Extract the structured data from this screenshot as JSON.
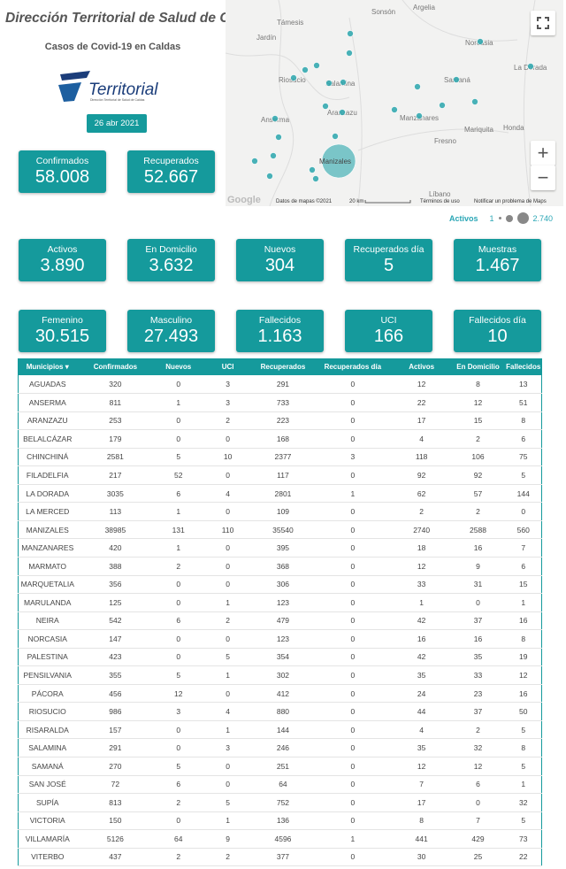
{
  "header": {
    "title": "Dirección Territorial de Salud de Caldas",
    "subtitle": "Casos de Covid-19 en Caldas",
    "logo_text": "Territorial",
    "logo_tagline": "Dirección Territorial de Salud de Caldas",
    "date": "26 abr 2021"
  },
  "colors": {
    "accent": "#159a9c",
    "legend": "#2aa6b5"
  },
  "top_cards": [
    {
      "label": "Confirmados",
      "value": "58.008"
    },
    {
      "label": "Recuperados",
      "value": "52.667"
    }
  ],
  "row1_cards": [
    {
      "label": "Activos",
      "value": "3.890"
    },
    {
      "label": "En Domicilio",
      "value": "3.632"
    },
    {
      "label": "Nuevos",
      "value": "304"
    },
    {
      "label": "Recuperados día",
      "value": "5"
    },
    {
      "label": "Muestras",
      "value": "1.467"
    }
  ],
  "row2_cards": [
    {
      "label": "Femenino",
      "value": "30.515"
    },
    {
      "label": "Masculino",
      "value": "27.493"
    },
    {
      "label": "Fallecidos",
      "value": "1.163"
    },
    {
      "label": "UCI",
      "value": "166"
    },
    {
      "label": "Fallecidos día",
      "value": "10"
    }
  ],
  "map": {
    "places": [
      "Sonsón",
      "Argelia",
      "Támesis",
      "Jardín",
      "Norcasia",
      "La Dorada",
      "Riosucio",
      "Salamina",
      "Samaná",
      "Aranzazu",
      "Manzanares",
      "Anserma",
      "Mariquita",
      "Honda",
      "Fresno",
      "Manizales",
      "Líbano"
    ],
    "attribution": "Google",
    "map_data": "Datos de mapas ©2021",
    "scale": "20 km",
    "terms": "Términos de uso",
    "report": "Notificar un problema de Maps",
    "fullscreen_icon": "fullscreen-icon",
    "zoom_in": "+",
    "zoom_out": "−"
  },
  "legend": {
    "metric": "Activos",
    "min": "1",
    "max": "2.740"
  },
  "table": {
    "columns": [
      "Municipios ▾",
      "Confirmados",
      "Nuevos",
      "UCI",
      "Recuperados",
      "Recuperados día",
      "Activos",
      "En Domicilio",
      "Fallecidos"
    ],
    "rows": [
      [
        "AGUADAS",
        "320",
        "0",
        "3",
        "291",
        "0",
        "12",
        "8",
        "13"
      ],
      [
        "ANSERMA",
        "811",
        "1",
        "3",
        "733",
        "0",
        "22",
        "12",
        "51"
      ],
      [
        "ARANZAZU",
        "253",
        "0",
        "2",
        "223",
        "0",
        "17",
        "15",
        "8"
      ],
      [
        "BELALCÁZAR",
        "179",
        "0",
        "0",
        "168",
        "0",
        "4",
        "2",
        "6"
      ],
      [
        "CHINCHINÁ",
        "2581",
        "5",
        "10",
        "2377",
        "3",
        "118",
        "106",
        "75"
      ],
      [
        "FILADELFIA",
        "217",
        "52",
        "0",
        "117",
        "0",
        "92",
        "92",
        "5"
      ],
      [
        "LA DORADA",
        "3035",
        "6",
        "4",
        "2801",
        "1",
        "62",
        "57",
        "144"
      ],
      [
        "LA MERCED",
        "113",
        "1",
        "0",
        "109",
        "0",
        "2",
        "2",
        "0"
      ],
      [
        "MANIZALES",
        "38985",
        "131",
        "110",
        "35540",
        "0",
        "2740",
        "2588",
        "560"
      ],
      [
        "MANZANARES",
        "420",
        "1",
        "0",
        "395",
        "0",
        "18",
        "16",
        "7"
      ],
      [
        "MARMATO",
        "388",
        "2",
        "0",
        "368",
        "0",
        "12",
        "9",
        "6"
      ],
      [
        "MARQUETALIA",
        "356",
        "0",
        "0",
        "306",
        "0",
        "33",
        "31",
        "15"
      ],
      [
        "MARULANDA",
        "125",
        "0",
        "1",
        "123",
        "0",
        "1",
        "0",
        "1"
      ],
      [
        "NEIRA",
        "542",
        "6",
        "2",
        "479",
        "0",
        "42",
        "37",
        "16"
      ],
      [
        "NORCASIA",
        "147",
        "0",
        "0",
        "123",
        "0",
        "16",
        "16",
        "8"
      ],
      [
        "PALESTINA",
        "423",
        "0",
        "5",
        "354",
        "0",
        "42",
        "35",
        "19"
      ],
      [
        "PENSILVANIA",
        "355",
        "5",
        "1",
        "302",
        "0",
        "35",
        "33",
        "12"
      ],
      [
        "PÁCORA",
        "456",
        "12",
        "0",
        "412",
        "0",
        "24",
        "23",
        "16"
      ],
      [
        "RIOSUCIO",
        "986",
        "3",
        "4",
        "880",
        "0",
        "44",
        "37",
        "50"
      ],
      [
        "RISARALDA",
        "157",
        "0",
        "1",
        "144",
        "0",
        "4",
        "2",
        "5"
      ],
      [
        "SALAMINA",
        "291",
        "0",
        "3",
        "246",
        "0",
        "35",
        "32",
        "8"
      ],
      [
        "SAMANÁ",
        "270",
        "5",
        "0",
        "251",
        "0",
        "12",
        "12",
        "5"
      ],
      [
        "SAN JOSÉ",
        "72",
        "6",
        "0",
        "64",
        "0",
        "7",
        "6",
        "1"
      ],
      [
        "SUPÍA",
        "813",
        "2",
        "5",
        "752",
        "0",
        "17",
        "0",
        "32"
      ],
      [
        "VICTORIA",
        "150",
        "0",
        "1",
        "136",
        "0",
        "8",
        "7",
        "5"
      ],
      [
        "VILLAMARÍA",
        "5126",
        "64",
        "9",
        "4596",
        "1",
        "441",
        "429",
        "73"
      ],
      [
        "VITERBO",
        "437",
        "2",
        "2",
        "377",
        "0",
        "30",
        "25",
        "22"
      ]
    ]
  }
}
